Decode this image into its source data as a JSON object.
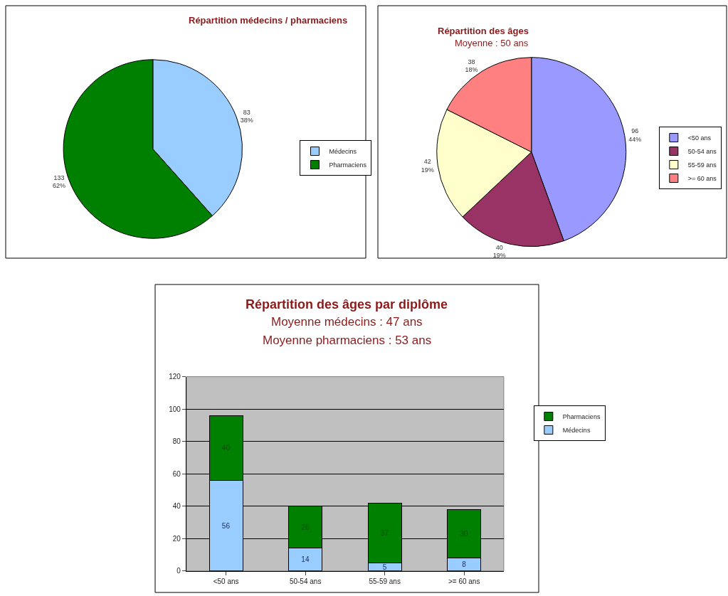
{
  "chart_data": [
    {
      "type": "pie",
      "title": "Répartition médecins / pharmaciens",
      "categories": [
        "Médecins",
        "Pharmaciens"
      ],
      "values": [
        83,
        133
      ],
      "colors": [
        "#99ccff",
        "#008000"
      ],
      "value_labels": [
        "83\n38%",
        "133\n62%"
      ],
      "legend": "right"
    },
    {
      "type": "pie",
      "title": "Répartition des âges",
      "subtitle": "Moyenne : 50 ans",
      "categories": [
        "<50 ans",
        "50-54 ans",
        "55-59 ans",
        ">= 60 ans"
      ],
      "values": [
        96,
        40,
        42,
        38
      ],
      "colors": [
        "#9999ff",
        "#993366",
        "#ffffcc",
        "#ff8080"
      ],
      "value_labels": [
        "96\n44%",
        "40\n19%",
        "42\n19%",
        "38\n18%"
      ],
      "legend": "right"
    },
    {
      "type": "bar",
      "title": "Répartition des âges par diplôme",
      "subtitle": "Moyenne médecins : 47 ans\nMoyenne pharmaciens : 53 ans",
      "categories": [
        "<50 ans",
        "50-54 ans",
        "55-59 ans",
        ">= 60 ans"
      ],
      "stacked": true,
      "series": [
        {
          "name": "Médecins",
          "color": "#99ccff",
          "values": [
            56,
            14,
            5,
            8
          ]
        },
        {
          "name": "Pharmaciens",
          "color": "#008000",
          "values": [
            40,
            26,
            37,
            30
          ]
        }
      ],
      "ylim": [
        0,
        120
      ],
      "yticks": [
        0,
        20,
        40,
        60,
        80,
        100,
        120
      ],
      "grid": "y",
      "data_labels": true,
      "legend": "right"
    }
  ]
}
